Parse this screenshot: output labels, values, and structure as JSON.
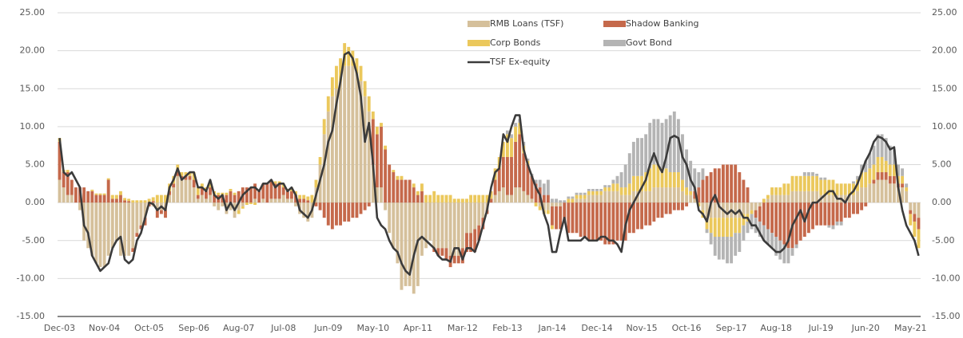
{
  "chart_data": {
    "type": "bar",
    "stacked": true,
    "grid": true,
    "legend": "top",
    "categories": [
      "Dec-03",
      null,
      null,
      null,
      null,
      null,
      null,
      null,
      null,
      null,
      null,
      "Nov-04",
      null,
      null,
      null,
      null,
      null,
      null,
      null,
      null,
      null,
      null,
      "Oct-05",
      null,
      null,
      null,
      null,
      null,
      null,
      null,
      null,
      null,
      null,
      "Sep-06",
      null,
      null,
      null,
      null,
      null,
      null,
      null,
      null,
      null,
      null,
      "Aug-07",
      null,
      null,
      null,
      null,
      null,
      null,
      null,
      null,
      null,
      null,
      "Jul-08",
      null,
      null,
      null,
      null,
      null,
      null,
      null,
      null,
      null,
      null,
      "Jun-09",
      null,
      null,
      null,
      null,
      null,
      null,
      null,
      null,
      null,
      null,
      "May-10",
      null,
      null,
      null,
      null,
      null,
      null,
      null,
      null,
      null,
      null,
      "Apr-11",
      null,
      null,
      null,
      null,
      null,
      null,
      null,
      null,
      null,
      null,
      "Mar-12",
      null,
      null,
      null,
      null,
      null,
      null,
      null,
      null,
      null,
      null,
      "Feb-13",
      null,
      null,
      null,
      null,
      null,
      null,
      null,
      null,
      null,
      null,
      "Jan-14",
      null,
      null,
      null,
      null,
      null,
      null,
      null,
      null,
      null,
      null,
      "Dec-14",
      null,
      null,
      null,
      null,
      null,
      null,
      null,
      null,
      null,
      null,
      "Nov-15",
      null,
      null,
      null,
      null,
      null,
      null,
      null,
      null,
      null,
      null,
      "Oct-16",
      null,
      null,
      null,
      null,
      null,
      null,
      null,
      null,
      null,
      null,
      "Sep-17",
      null,
      null,
      null,
      null,
      null,
      null,
      null,
      null,
      null,
      null,
      "Aug-18",
      null,
      null,
      null,
      null,
      null,
      null,
      null,
      null,
      null,
      null,
      "Jul-19",
      null,
      null,
      null,
      null,
      null,
      null,
      null,
      null,
      null,
      null,
      "Jun-20",
      null,
      null,
      null,
      null,
      null,
      null,
      null,
      null,
      null,
      null,
      "May-21",
      null,
      null
    ],
    "series": [
      {
        "name": "RMB Loans (TSF)",
        "type": "bar",
        "color": "#d5c09b",
        "values": [
          3,
          2,
          1,
          1,
          0,
          -1,
          -5,
          -6,
          -7,
          -8,
          -8.5,
          -8.5,
          -7,
          -6,
          -5,
          -7,
          -7,
          -7,
          -6,
          -4,
          -3,
          -2,
          0,
          -0.5,
          -1,
          -1,
          -1,
          1,
          2,
          3.5,
          3,
          3,
          3,
          2,
          0.5,
          1,
          0.5,
          1,
          -0.5,
          -1,
          -0.5,
          -1.5,
          -1,
          -2,
          -1,
          -0.5,
          0,
          0,
          0.5,
          0,
          0.5,
          0,
          0.5,
          0.5,
          0.5,
          1,
          0.5,
          0.5,
          -0.5,
          -1.5,
          -2,
          -2.5,
          -2,
          2,
          5,
          9,
          12,
          14,
          15,
          16,
          18,
          18,
          18,
          17,
          16,
          14,
          12,
          5,
          2,
          2,
          -1,
          -4,
          -6,
          -8,
          -11.5,
          -11,
          -11,
          -12,
          -11,
          -7,
          -6,
          -5,
          -6,
          -6,
          -6,
          -6,
          -7,
          -7,
          -7,
          -6,
          -4,
          -4,
          -3.5,
          -3,
          -2,
          -1,
          0,
          1,
          1.5,
          2,
          1,
          1,
          2,
          2,
          1.5,
          1,
          0.5,
          0,
          -0.5,
          -1,
          -1,
          -0.5,
          -0.5,
          -0.5,
          0,
          0,
          0,
          0.5,
          0.5,
          0.5,
          1,
          1,
          1,
          1,
          1.5,
          1.5,
          1.5,
          1.5,
          1,
          1,
          1,
          1.5,
          1.5,
          1.5,
          1.5,
          1.5,
          2,
          2,
          2,
          2,
          2,
          2,
          2,
          1.5,
          1,
          1,
          0.5,
          0,
          -1,
          -2,
          -2,
          -2,
          -2,
          -2,
          -2,
          -2,
          -2,
          -2,
          -1.5,
          -1.5,
          -1,
          -1,
          -0.5,
          0,
          0.5,
          1,
          1,
          1,
          1,
          1,
          1.5,
          1.5,
          1.5,
          1.5,
          1.5,
          1.5,
          1.5,
          1,
          1,
          1,
          1,
          1,
          1,
          1,
          1,
          1,
          1.5,
          2,
          2,
          2.5,
          2.5,
          3,
          3,
          3,
          2.5,
          2.5,
          2,
          2,
          1.5,
          -1,
          -1.5,
          -2
        ]
      },
      {
        "name": "Shadow Banking",
        "type": "bar",
        "color": "#c5694b",
        "values": [
          5,
          2,
          3,
          2,
          2,
          2,
          2,
          1.5,
          1.5,
          1,
          1,
          1,
          3,
          0.5,
          0.5,
          1,
          0.3,
          0.2,
          -0.5,
          -0.5,
          -0.5,
          -1,
          -0.5,
          0.2,
          -1,
          -0.5,
          -1,
          0.5,
          0.5,
          0.5,
          0.5,
          0.5,
          0.5,
          1,
          0.5,
          1,
          1,
          1,
          1,
          1,
          1,
          1,
          1.5,
          1,
          1.5,
          2,
          2,
          2,
          2,
          1.5,
          2,
          2.5,
          2.5,
          2,
          2,
          1,
          1,
          1,
          1,
          0.5,
          0.5,
          0.3,
          0,
          -0.5,
          -1,
          -2,
          -3,
          -3.5,
          -3,
          -3,
          -2.5,
          -2.5,
          -2,
          -2,
          -1.5,
          -1,
          -0.5,
          6,
          7,
          8,
          7,
          5,
          4,
          3,
          3,
          3,
          3,
          2,
          1,
          1.5,
          0,
          0,
          -0.5,
          -1,
          -1,
          -1.5,
          -1.5,
          -1,
          -1,
          -2,
          -2.5,
          -2.5,
          -3,
          -2,
          -1.5,
          -0.5,
          0.5,
          2,
          3,
          4,
          5,
          5,
          6,
          7,
          5,
          4,
          3,
          2.5,
          2,
          1,
          1,
          -2.5,
          -3,
          -3,
          -2.5,
          -4,
          -4,
          -4,
          -4.5,
          -4.5,
          -5,
          -5,
          -5,
          -5,
          -5.5,
          -5.5,
          -5.5,
          -5,
          -5,
          -5,
          -4,
          -4,
          -3.5,
          -3.5,
          -3,
          -3,
          -2.5,
          -2,
          -2,
          -1.5,
          -1.5,
          -1,
          -1,
          -1,
          -0.5,
          0,
          1,
          2,
          3,
          3.5,
          4,
          4.5,
          4.5,
          5,
          5,
          5,
          5,
          4,
          3,
          2,
          0,
          -1,
          -2,
          -3,
          -3.5,
          -4,
          -4.5,
          -5,
          -5.5,
          -6,
          -6,
          -5.5,
          -5,
          -4.5,
          -4,
          -3.5,
          -3,
          -3,
          -3,
          -3,
          -3,
          -2.5,
          -2.5,
          -2,
          -2,
          -1.5,
          -1.5,
          -1,
          -0.5,
          0,
          0.5,
          1,
          1,
          1,
          1,
          1,
          0.5,
          0.5,
          0,
          -0.5,
          -1,
          -1.5
        ]
      },
      {
        "name": "Corp Bonds",
        "type": "bar",
        "color": "#ebc85c",
        "values": [
          0.5,
          0.3,
          0.3,
          0,
          0,
          0,
          0,
          0,
          0.2,
          0.2,
          0.2,
          0.2,
          0.2,
          0.5,
          0.5,
          0.5,
          0.3,
          0.3,
          0.3,
          0.3,
          0.3,
          0.3,
          0.5,
          0.5,
          1,
          1,
          1,
          1,
          1,
          1,
          0.5,
          0.5,
          0.5,
          1,
          1,
          0.5,
          0.5,
          0.5,
          0.5,
          0.3,
          0.3,
          0.3,
          0.3,
          0.3,
          -0.5,
          -0.3,
          -0.3,
          -0.2,
          -0.3,
          0,
          0,
          0,
          0,
          0.3,
          0.3,
          0.5,
          0.3,
          0.5,
          0.5,
          0.5,
          0.5,
          0.5,
          1,
          1,
          1,
          2,
          2,
          2.5,
          3,
          3,
          3,
          2.5,
          2,
          2,
          2,
          2,
          2,
          1,
          1,
          0.5,
          0.5,
          0,
          0.3,
          0.5,
          0.5,
          0,
          0,
          0.5,
          0.5,
          1,
          1,
          1,
          1.5,
          1,
          1,
          1,
          1,
          0.5,
          0.5,
          0.5,
          0.5,
          1,
          1,
          1,
          1,
          1,
          1,
          1.5,
          1.5,
          2,
          3,
          2.5,
          2,
          1.5,
          1,
          0.5,
          0,
          -0.5,
          -0.5,
          -0.5,
          -0.5,
          -0.5,
          0,
          0,
          0,
          0.5,
          0.5,
          0.5,
          0.5,
          0.5,
          0.5,
          0.5,
          0.5,
          0.5,
          0.5,
          0.5,
          1,
          1,
          1,
          1,
          1.5,
          2,
          2,
          2,
          2.5,
          3,
          3,
          3,
          2.5,
          2.5,
          2,
          2,
          2,
          1.5,
          1,
          0.5,
          0,
          -0.5,
          -1,
          -1.5,
          -2,
          -2.5,
          -2.5,
          -2.5,
          -2.5,
          -2.5,
          -2,
          -2,
          -1.5,
          -1,
          -0.5,
          0,
          0,
          0.5,
          0.5,
          1,
          1,
          1,
          1.5,
          1.5,
          2,
          2,
          2,
          2,
          2,
          2,
          2,
          2,
          2,
          2,
          2,
          1.5,
          1.5,
          1.5,
          1.5,
          1.5,
          1.5,
          2,
          2,
          2,
          2,
          2,
          2,
          1.5,
          1.5,
          1.5,
          1,
          1,
          0.5,
          -1.5,
          -2,
          -2.5
        ]
      },
      {
        "name": "Govt Bond",
        "type": "bar",
        "color": "#b4b4b4",
        "values": [
          0,
          0,
          0,
          0,
          0,
          0,
          0,
          0,
          0,
          0,
          0,
          0,
          0,
          0,
          0,
          0,
          0,
          0,
          0,
          0,
          0,
          0,
          0,
          0,
          0,
          0,
          0,
          0,
          0,
          0,
          0,
          0,
          0,
          0,
          0,
          0,
          0,
          0,
          0,
          0,
          0,
          0,
          0,
          0,
          0,
          0,
          0,
          0,
          0,
          0,
          0,
          0,
          0,
          0,
          0,
          0,
          0,
          0,
          0,
          0,
          0,
          0,
          0,
          0,
          0,
          0,
          0,
          0,
          0,
          0,
          0,
          0,
          0,
          0,
          0,
          0,
          0,
          0,
          0,
          0,
          0,
          0,
          0,
          0,
          0,
          0,
          0,
          0,
          0,
          0,
          0,
          0,
          0,
          0,
          0,
          0,
          0,
          0,
          0,
          0,
          0,
          0,
          0,
          0,
          0,
          0,
          0,
          0,
          0,
          0,
          0.5,
          0.5,
          0.5,
          0.5,
          0.5,
          0.3,
          0.3,
          0.5,
          1,
          1.5,
          2,
          0.5,
          0.5,
          0.3,
          0.3,
          0.3,
          0.3,
          0.3,
          0.3,
          0.3,
          0.3,
          0.3,
          0.3,
          0.3,
          0.3,
          0.3,
          0.5,
          1,
          2,
          3,
          4,
          4.5,
          5,
          5,
          5,
          6,
          6,
          6,
          6,
          6.5,
          7.5,
          8,
          7,
          6,
          5,
          4,
          3,
          2,
          1.5,
          -0.5,
          -1.5,
          -2.5,
          -3,
          -3,
          -3.5,
          -3.5,
          -3,
          -2.5,
          -2,
          -1.5,
          -2,
          -2,
          -2,
          -2,
          -2,
          -2,
          -2.5,
          -2.5,
          -2.5,
          -2,
          -1,
          -0.5,
          0,
          0.5,
          0.5,
          0.5,
          0.3,
          0.3,
          0.3,
          -0.3,
          -0.5,
          -0.5,
          -0.5,
          0,
          0,
          0.3,
          0.5,
          1,
          1.5,
          2,
          2.5,
          3,
          3,
          3,
          2.5,
          2,
          1.5,
          1,
          0.5,
          0,
          0,
          0
        ]
      },
      {
        "name": "TSF Ex-equity",
        "type": "line",
        "color": "#3b3b3b",
        "values": [
          8.5,
          4,
          3.5,
          4,
          3,
          2,
          -3,
          -4,
          -7,
          -8,
          -9,
          -8.5,
          -8,
          -6,
          -5,
          -4.5,
          -7.5,
          -8,
          -7.5,
          -5,
          -4,
          -2,
          0,
          -0.2,
          -1,
          -0.5,
          -1,
          2,
          3,
          4.5,
          3,
          3.5,
          4,
          4,
          2,
          2,
          1.5,
          3,
          1,
          0.5,
          1,
          -1,
          0,
          -1,
          0,
          1,
          1.5,
          2,
          2,
          1.5,
          2.5,
          2.5,
          3,
          2,
          2.5,
          2.5,
          1.5,
          2,
          1,
          -1,
          -1.5,
          -2,
          -1,
          1,
          3,
          5,
          8,
          9.5,
          13,
          16,
          19.5,
          19.8,
          19,
          17,
          14,
          8,
          10.5,
          5,
          -2,
          -3,
          -3.5,
          -5,
          -6,
          -6.5,
          -8,
          -9,
          -9.5,
          -7,
          -5,
          -4.5,
          -5,
          -5.5,
          -6,
          -7,
          -7.5,
          -7.5,
          -7.8,
          -6,
          -6,
          -7.5,
          -6,
          -6,
          -6.5,
          -5,
          -3,
          -1,
          2,
          4,
          4.5,
          9,
          8,
          10,
          11.5,
          11.5,
          7,
          5,
          3.5,
          2,
          1,
          -1.5,
          -3,
          -6.5,
          -6.5,
          -4,
          -2,
          -5,
          -5,
          -5,
          -5,
          -4.5,
          -5,
          -5,
          -5,
          -4.5,
          -4.5,
          -5,
          -5,
          -5.5,
          -6.5,
          -3,
          -1,
          0,
          1,
          2,
          3,
          5,
          6.5,
          5,
          4,
          6,
          8.5,
          8.8,
          8.5,
          6,
          5,
          3,
          2,
          -1,
          -1.5,
          -2.5,
          0,
          1,
          -0.5,
          -1,
          -1.5,
          -1,
          -1.5,
          -1,
          -2,
          -2,
          -3,
          -3,
          -4,
          -5,
          -5.5,
          -6,
          -6.5,
          -6.5,
          -6,
          -5,
          -3,
          -2,
          -1,
          -2.5,
          -1,
          0,
          0,
          0.5,
          1,
          1.5,
          1.5,
          0.5,
          0.5,
          0,
          1,
          1.5,
          2.5,
          4,
          5.5,
          6.5,
          8,
          8.7,
          8.5,
          8,
          7,
          7.3,
          2,
          -1,
          -3,
          -4,
          -5,
          -7
        ]
      }
    ],
    "ylim": [
      -15,
      25
    ],
    "yticks": [
      {
        "value": -15,
        "label": "-15.00"
      },
      {
        "value": -10,
        "label": "-10.00"
      },
      {
        "value": -5,
        "label": "-5.00"
      },
      {
        "value": 0,
        "label": "0.00"
      },
      {
        "value": 5,
        "label": "5.00"
      },
      {
        "value": 10,
        "label": "10.00"
      },
      {
        "value": 15,
        "label": "15.00"
      },
      {
        "value": 20,
        "label": "20.00"
      },
      {
        "value": 25,
        "label": "25.00"
      }
    ],
    "y2lim": [
      -15,
      25
    ],
    "y2ticks": [
      {
        "value": -15,
        "label": "-15.00"
      },
      {
        "value": -10,
        "label": "-10.00"
      },
      {
        "value": -5,
        "label": "-5.00"
      },
      {
        "value": 0,
        "label": "0.00"
      },
      {
        "value": 5,
        "label": "5.00"
      },
      {
        "value": 10,
        "label": "10.00"
      },
      {
        "value": 15,
        "label": "15.00"
      },
      {
        "value": 20,
        "label": "20.00"
      },
      {
        "value": 25,
        "label": "25.00"
      }
    ]
  }
}
